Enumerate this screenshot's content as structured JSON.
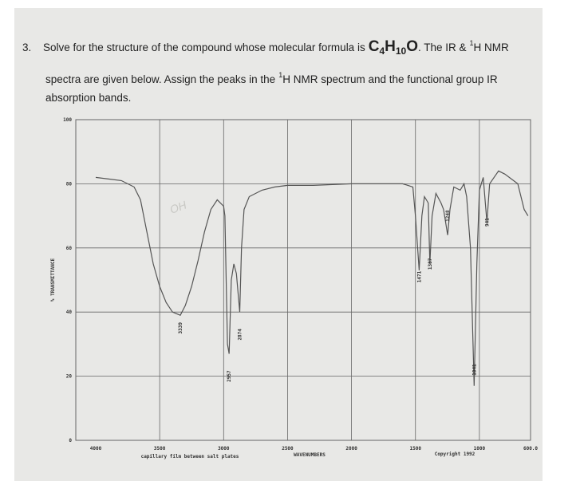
{
  "question": {
    "number": "3.",
    "line1_text": "Solve for the structure of the compound whose molecular formula is",
    "formula": [
      "C",
      "4",
      "H",
      "10",
      "O"
    ],
    "line1_after": ". The IR &",
    "nucleus_mass": "1",
    "nucleus_rest": "H NMR",
    "line2_before": "spectra are given below. Assign the peaks in the",
    "line2_mass": "1",
    "line2_after": "H NMR spectrum and the functional group IR",
    "line3": "absorption bands."
  },
  "chart_data": {
    "type": "line",
    "color": "#555555",
    "x": [
      4000,
      3900,
      3800,
      3700,
      3650,
      3600,
      3550,
      3500,
      3450,
      3400,
      3339,
      3300,
      3250,
      3200,
      3150,
      3100,
      3050,
      3000,
      2990,
      2970,
      2957,
      2940,
      2920,
      2900,
      2874,
      2860,
      2840,
      2800,
      2700,
      2600,
      2500,
      2300,
      2000,
      1800,
      1600,
      1520,
      1500,
      1471,
      1450,
      1430,
      1400,
      1387,
      1370,
      1340,
      1300,
      1280,
      1248,
      1230,
      1200,
      1150,
      1120,
      1100,
      1070,
      1041,
      1020,
      1000,
      970,
      941,
      920,
      850,
      800,
      700,
      650,
      620
    ],
    "values": [
      82,
      81.5,
      81,
      79,
      75,
      65,
      55,
      48,
      43,
      40,
      39,
      42,
      48,
      56,
      65,
      72,
      75,
      73,
      70,
      30,
      27,
      50,
      55,
      52,
      40,
      60,
      72,
      76,
      78,
      79,
      79.5,
      79.5,
      80,
      80,
      80,
      79,
      70,
      53,
      70,
      76,
      74,
      55,
      70,
      77,
      74,
      72,
      64,
      72,
      79,
      78,
      80,
      76,
      60,
      17,
      55,
      78,
      82,
      68,
      80,
      84,
      83,
      80,
      72,
      70
    ],
    "xlim": [
      4000,
      600
    ],
    "ylim": [
      0,
      100
    ],
    "xticks": [
      4000,
      3500,
      3000,
      2500,
      2000,
      1500,
      1000,
      {
        "value": 600,
        "label": "600.0"
      }
    ],
    "yticks": [
      0,
      20,
      40,
      60,
      80,
      100
    ],
    "grid": true,
    "y_label": "% TRANSMITTANCE",
    "x_label": "WAVENUMBERS",
    "note": "capillary film between salt plates",
    "copyright": "Copyright 1992",
    "annotation": "OH",
    "peaks": [
      {
        "value": 3339,
        "y": 35
      },
      {
        "value": 2957,
        "y": 20
      },
      {
        "value": 2874,
        "y": 33
      },
      {
        "value": 1471,
        "y": 51
      },
      {
        "value": 1387,
        "y": 55
      },
      {
        "value": 1248,
        "y": 70
      },
      {
        "value": 1041,
        "y": 22
      },
      {
        "value": 941,
        "y": 68
      }
    ]
  }
}
